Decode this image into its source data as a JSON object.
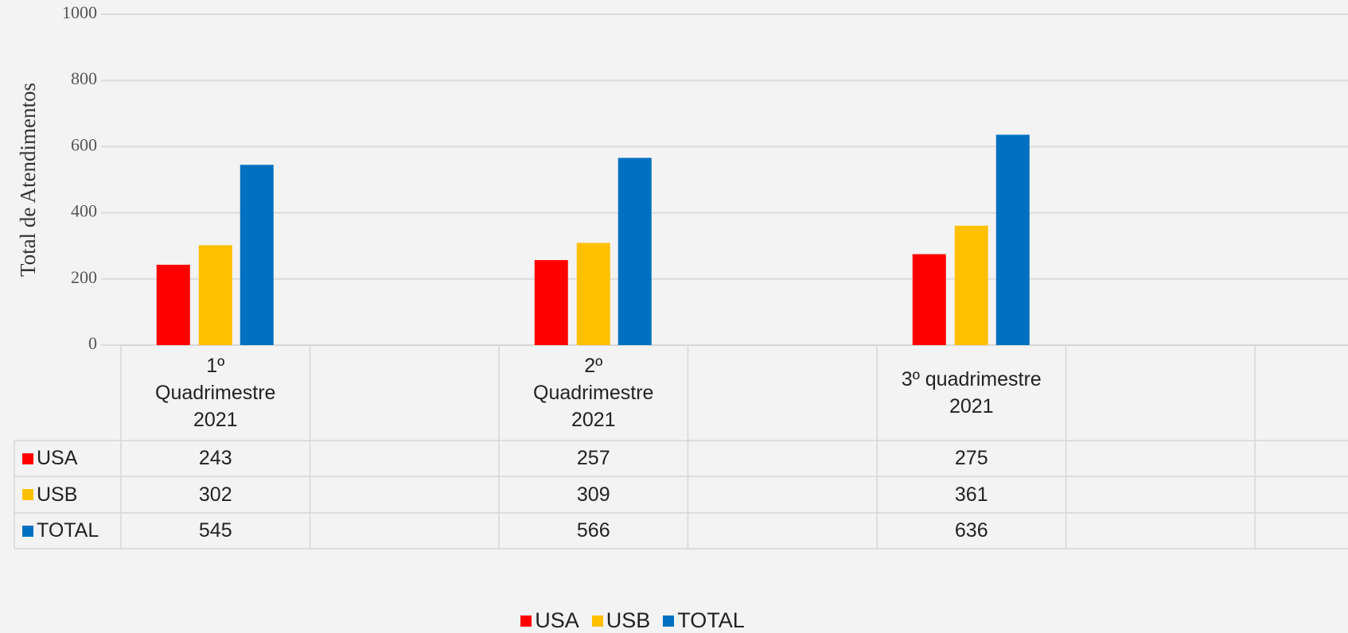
{
  "chart_data": {
    "type": "bar",
    "y_label": "Total de Atendimentos",
    "categories": [
      "1º Quadrimestre 2021",
      "2º Quadrimestre 2021",
      "3º quadrimestre 2021"
    ],
    "series": [
      {
        "name": "USA",
        "color": "#ff0000",
        "values": [
          243,
          257,
          275
        ]
      },
      {
        "name": "USB",
        "color": "#ffc000",
        "values": [
          302,
          309,
          361
        ]
      },
      {
        "name": "TOTAL",
        "color": "#0070c0",
        "values": [
          545,
          566,
          636
        ]
      }
    ],
    "ylim": [
      0,
      1000
    ],
    "yticks": [
      0,
      200,
      400,
      600,
      800,
      1000
    ],
    "grid": true,
    "legend": "bottom"
  }
}
